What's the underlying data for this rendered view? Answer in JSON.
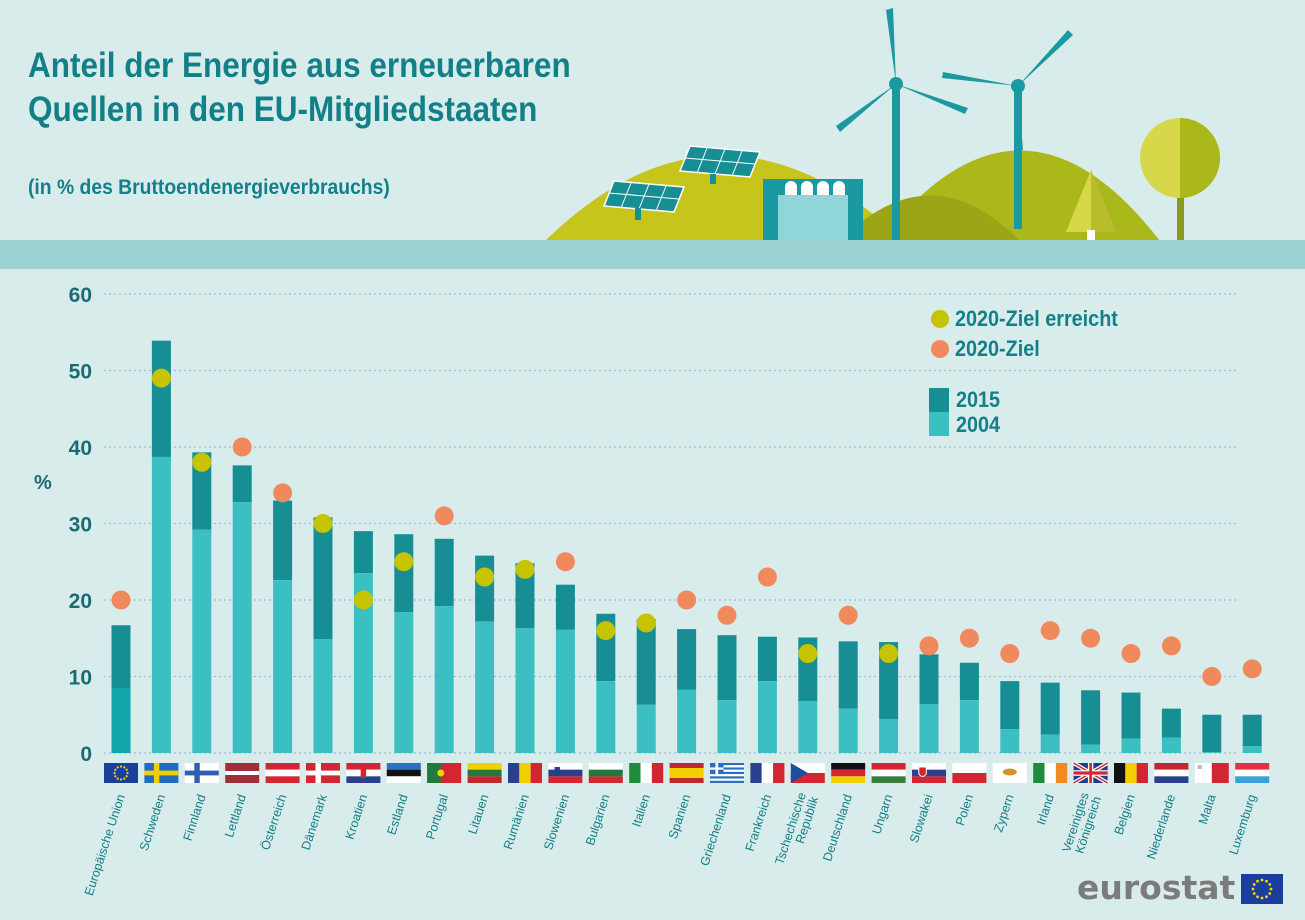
{
  "title_line1": "Anteil der Energie aus erneuerbaren",
  "title_line2": "Quellen in den EU-Mitgliedstaaten",
  "subtitle": "(in % des Bruttoendenergieverbrauchs)",
  "brand": "eurostat",
  "colors": {
    "bar_2015": "#168e93",
    "bar_2004": "#3bbfc3",
    "bar_eu": "#12a5ab",
    "dot_reached": "#c6c400",
    "dot_target": "#f08a5d",
    "text": "#137f87",
    "grid": "#9fb9d6",
    "band": "#9bd2d4"
  },
  "legend": {
    "reached": "2020-Ziel erreicht",
    "target": "2020-Ziel",
    "y2015": "2015",
    "y2004": "2004"
  },
  "chart_data": {
    "type": "bar",
    "ylabel": "%",
    "ylim": [
      0,
      60
    ],
    "yticks": [
      0,
      10,
      20,
      30,
      40,
      50,
      60
    ],
    "grid": true,
    "legend_position": "top-right",
    "categories": [
      "Europäische Union",
      "Schweden",
      "Finnland",
      "Lettland",
      "Österreich",
      "Dänemark",
      "Kroatien",
      "Estland",
      "Portugal",
      "Litauen",
      "Rumänien",
      "Slowenien",
      "Bulgarien",
      "Italien",
      "Spanien",
      "Griechenland",
      "Frankreich",
      "Tschechische Republik",
      "Deutschland",
      "Ungarn",
      "Slowakei",
      "Polen",
      "Zypern",
      "Irland",
      "Vereinigtes Königreich",
      "Belgien",
      "Niederlande",
      "Malta",
      "Luxemburg"
    ],
    "category_lines": [
      [
        "Europäische Union"
      ],
      [
        "Schweden"
      ],
      [
        "Finnland"
      ],
      [
        "Lettland"
      ],
      [
        "Österreich"
      ],
      [
        "Dänemark"
      ],
      [
        "Kroatien"
      ],
      [
        "Estland"
      ],
      [
        "Portugal"
      ],
      [
        "Litauen"
      ],
      [
        "Rumänien"
      ],
      [
        "Slowenien"
      ],
      [
        "Bulgarien"
      ],
      [
        "Italien"
      ],
      [
        "Spanien"
      ],
      [
        "Griechenland"
      ],
      [
        "Frankreich"
      ],
      [
        "Tschechische",
        "Republik"
      ],
      [
        "Deutschland"
      ],
      [
        "Ungarn"
      ],
      [
        "Slowakei"
      ],
      [
        "Polen"
      ],
      [
        "Zypern"
      ],
      [
        "Irland"
      ],
      [
        "Vereinigtes",
        "Königreich"
      ],
      [
        "Belgien"
      ],
      [
        "Niederlande"
      ],
      [
        "Malta"
      ],
      [
        "Luxemburg"
      ]
    ],
    "series": [
      {
        "name": "2015",
        "values": [
          16.7,
          53.9,
          39.3,
          37.6,
          33.0,
          30.8,
          29.0,
          28.6,
          28.0,
          25.8,
          24.8,
          22.0,
          18.2,
          17.5,
          16.2,
          15.4,
          15.2,
          15.1,
          14.6,
          14.5,
          12.9,
          11.8,
          9.4,
          9.2,
          8.2,
          7.9,
          5.8,
          5.0,
          5.0
        ]
      },
      {
        "name": "2004",
        "values": [
          8.5,
          38.7,
          29.2,
          32.8,
          22.6,
          14.9,
          23.5,
          18.4,
          19.2,
          17.2,
          16.3,
          16.1,
          9.4,
          6.3,
          8.3,
          6.9,
          9.4,
          6.8,
          5.8,
          4.4,
          6.4,
          6.9,
          3.1,
          2.4,
          1.1,
          1.9,
          2.0,
          0.1,
          0.9
        ]
      }
    ],
    "target_2020": [
      20,
      49,
      38,
      40,
      34,
      30,
      20,
      25,
      31,
      23,
      24,
      25,
      16,
      17,
      20,
      18,
      23,
      13,
      18,
      13,
      14,
      15,
      13,
      16,
      15,
      13,
      14,
      10,
      11
    ],
    "target_reached": [
      false,
      true,
      true,
      false,
      false,
      true,
      true,
      true,
      false,
      true,
      true,
      false,
      true,
      true,
      false,
      false,
      false,
      true,
      false,
      true,
      false,
      false,
      false,
      false,
      false,
      false,
      false,
      false,
      false
    ]
  }
}
